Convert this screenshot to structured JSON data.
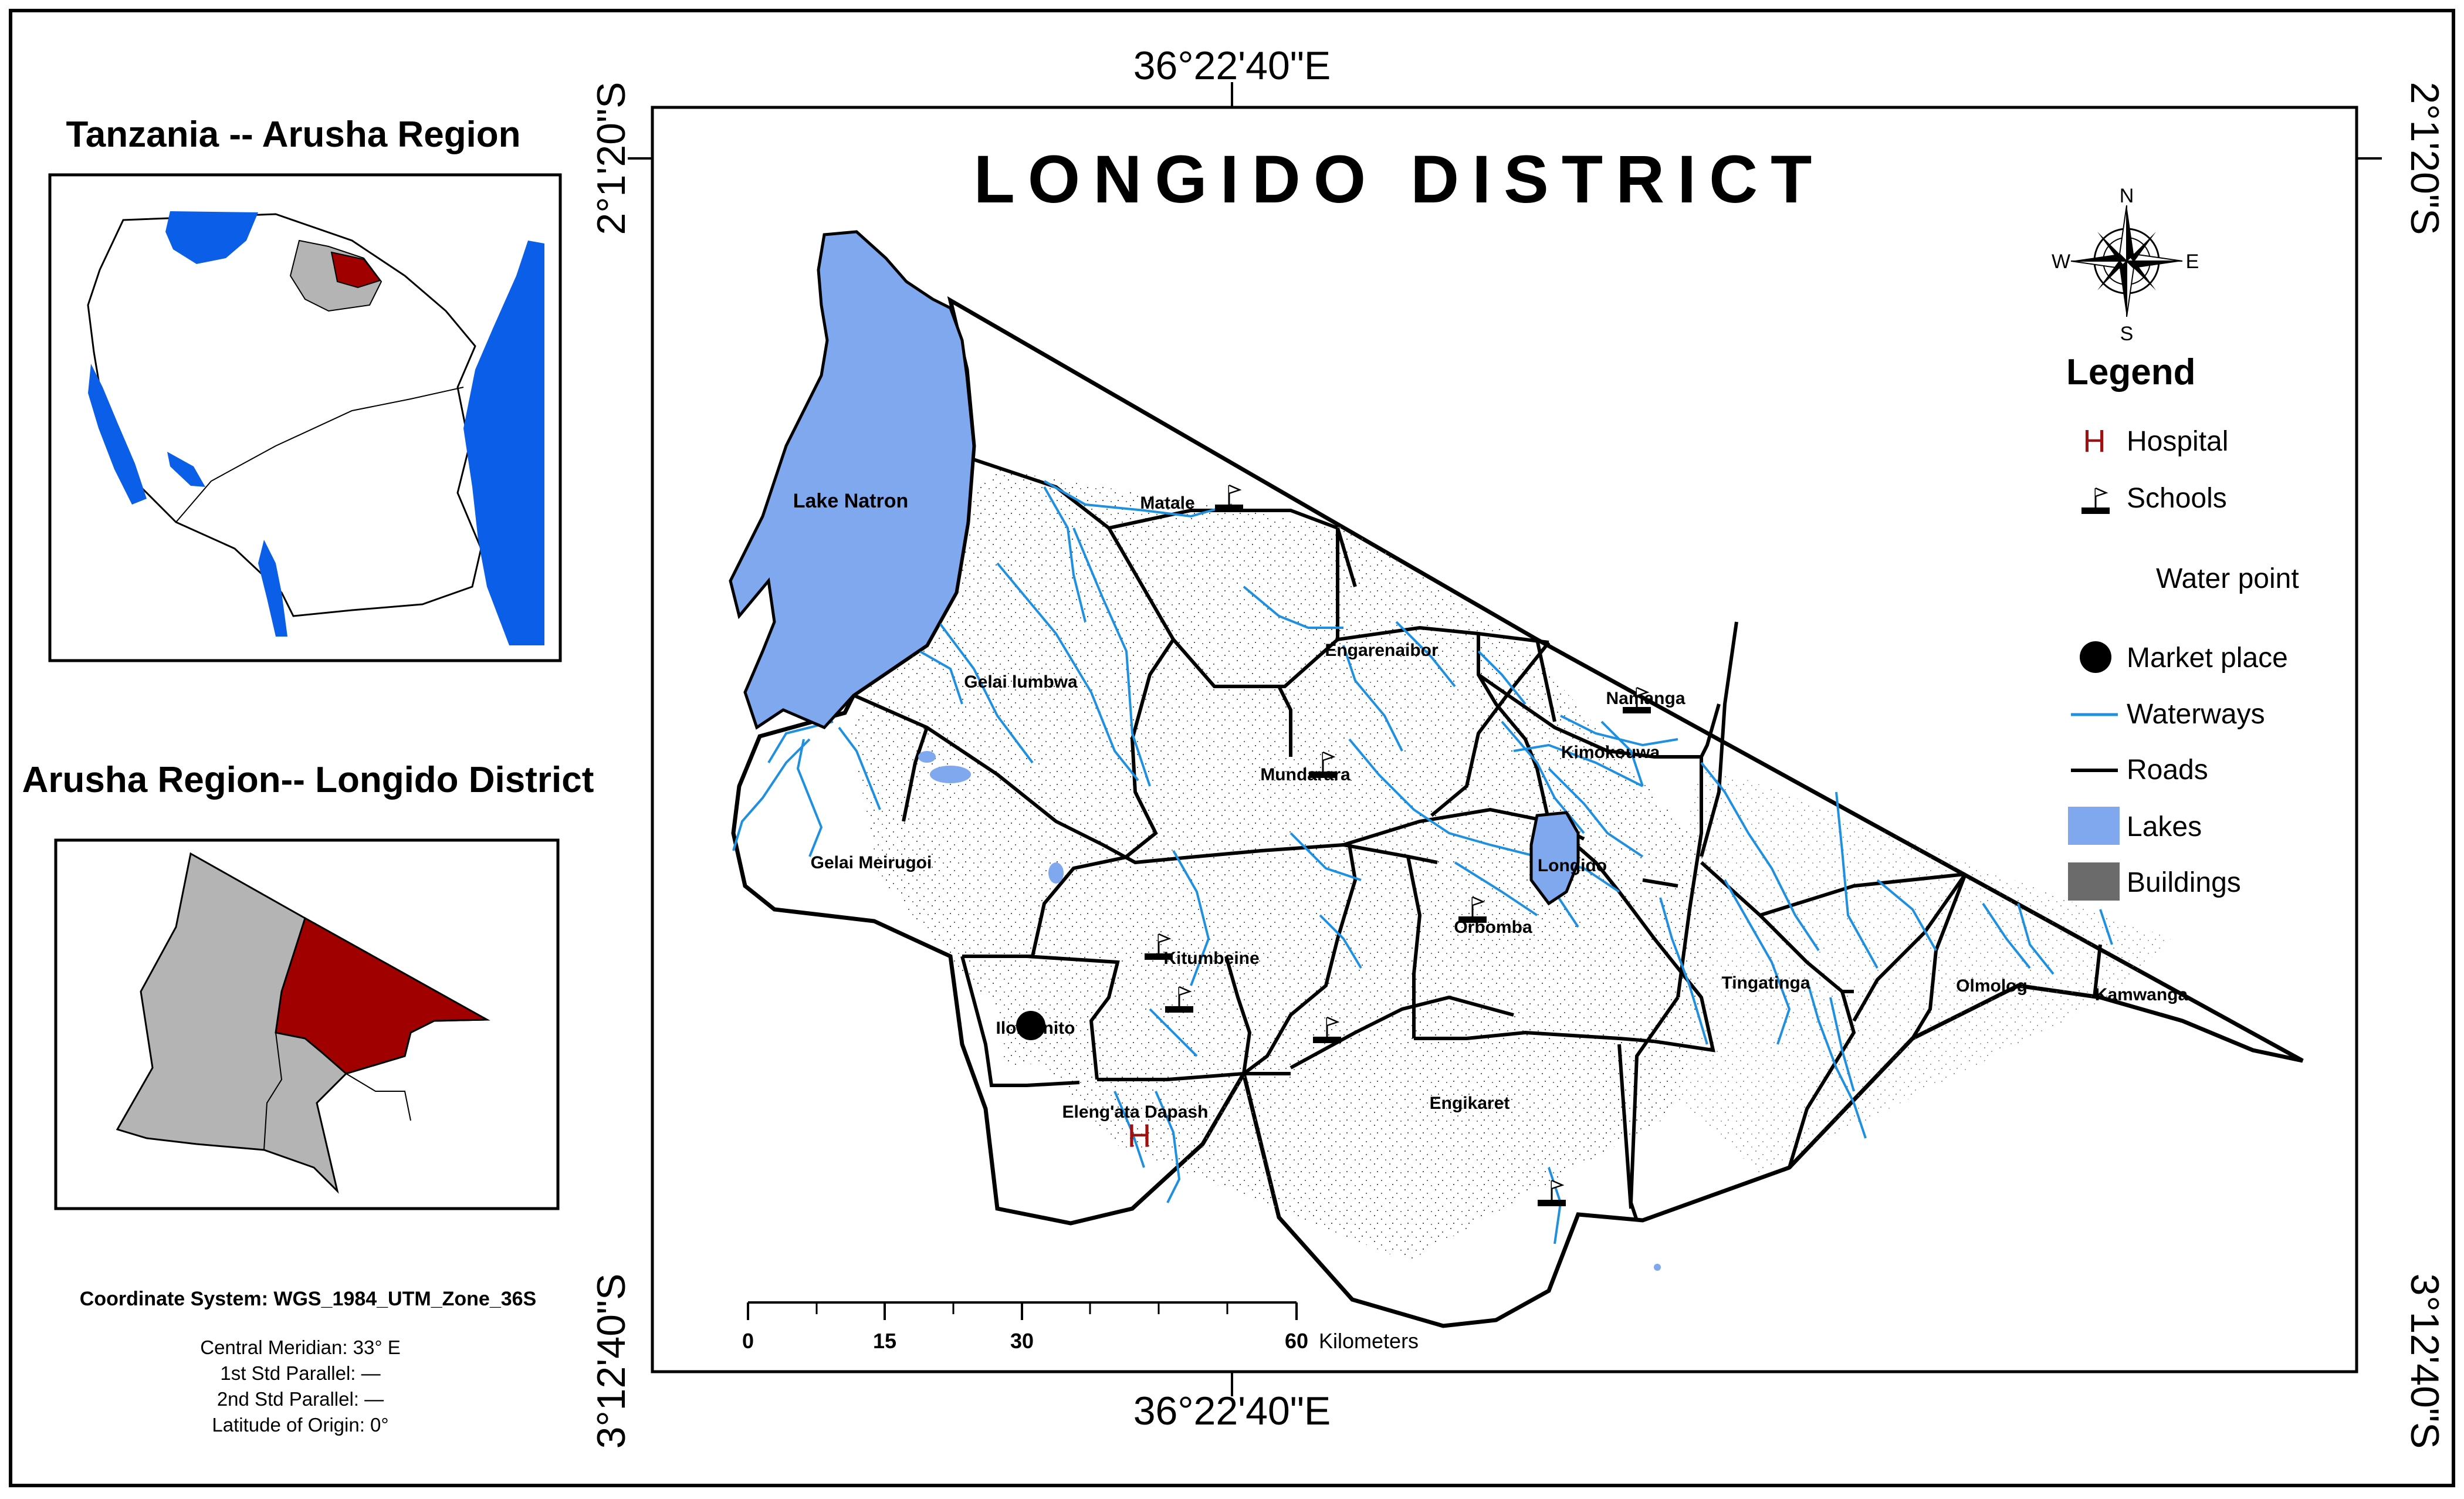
{
  "inset_tanzania": {
    "title": "Tanzania -- Arusha Region"
  },
  "inset_arusha": {
    "title": "Arusha Region-- Longido District"
  },
  "main_map": {
    "title": "LONGIDO DISTRICT",
    "lake_label": "Lake Natron",
    "wards": [
      "Matale",
      "Gelai lumbwa",
      "Engarenaibor",
      "Namanga",
      "Kimokouwa",
      "Mundarara",
      "Gelai Meirugoi",
      "Longido",
      "Orbomba",
      "Kitumbeine",
      "Tingatinga",
      "Olmolog",
      "Kamwanga",
      "Iloirienito",
      "Eleng'ata Dapash",
      "Engikaret"
    ]
  },
  "coordinates": {
    "top_longitude": "36°22'40\"E",
    "bottom_longitude": "36°22'40\"E",
    "left_top_latitude": "2°1'20\"S",
    "left_bottom_latitude": "3°12'40\"S",
    "right_top_latitude": "2°1'20\"S",
    "right_bottom_latitude": "3°12'40\"S"
  },
  "north_arrow": {
    "n": "N",
    "s": "S",
    "e": "E",
    "w": "W"
  },
  "legend": {
    "title": "Legend",
    "items": [
      {
        "label": "Hospital",
        "symbol": "H",
        "color": "#a01010"
      },
      {
        "label": "Schools",
        "color": "#000000"
      },
      {
        "label": "Water point"
      },
      {
        "label": "Market place",
        "color": "#000000"
      },
      {
        "label": "Waterways",
        "color": "#1f8fe0"
      },
      {
        "label": "Roads",
        "color": "#000000"
      },
      {
        "label": "Lakes",
        "color": "#7fa8ee"
      },
      {
        "label": "Buildings",
        "color": "#6b6b6b"
      }
    ]
  },
  "scale_bar": {
    "ticks": [
      "0",
      "15",
      "30",
      "60"
    ],
    "unit": "Kilometers"
  },
  "projection": {
    "coordinate_system": "Coordinate System: WGS_1984_UTM_Zone_36S",
    "central_meridian": "Central Meridian: 33° E",
    "std_parallel_1": "1st Std Parallel: —",
    "std_parallel_2": "2nd Std Parallel: —",
    "latitude_origin": "Latitude of Origin: 0°"
  },
  "colors": {
    "ocean_lake_blue": "#0a5ee8",
    "region_grey": "#b4b4b4",
    "district_red": "#a00000",
    "lake_natron": "#7fa8ee",
    "waterway": "#1f8fe0"
  }
}
